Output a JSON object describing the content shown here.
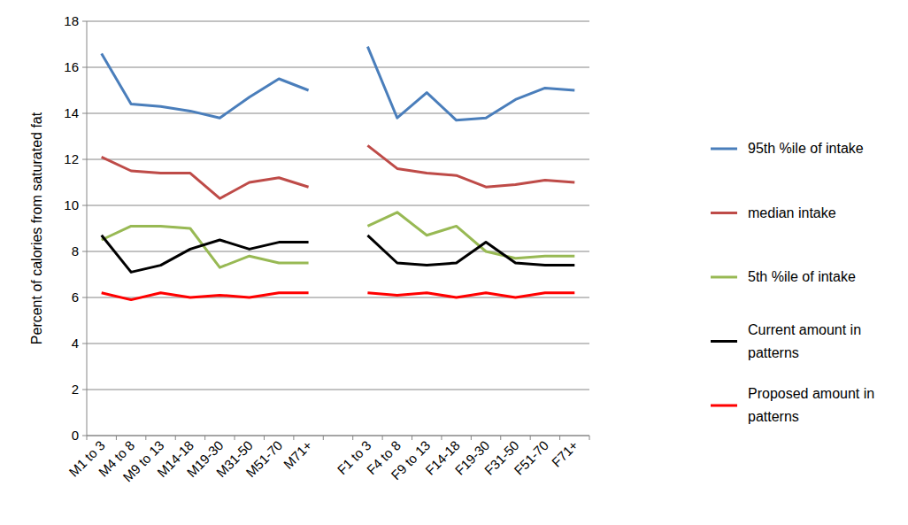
{
  "chart_data": {
    "type": "line",
    "y_label": "Percent of calories from saturated fat",
    "categories": [
      "M1 to 3",
      "M4 to 8",
      "M9 to 13",
      "M14-18",
      "M19-30",
      "M31-50",
      "M51-70",
      "M71+",
      null,
      "F1 to 3",
      "F4 to 8",
      "F9 to 13",
      "F14-18",
      "F19-30",
      "F31-50",
      "F51-70",
      "F71+"
    ],
    "series": [
      {
        "name": "95th %ile of intake",
        "color": "#4a7ebb",
        "values": [
          16.6,
          14.4,
          14.3,
          14.1,
          13.8,
          14.7,
          15.5,
          15.0,
          null,
          16.9,
          13.8,
          14.9,
          13.7,
          13.8,
          14.6,
          15.1,
          15.0
        ]
      },
      {
        "name": "median intake",
        "color": "#be4b48",
        "values": [
          12.1,
          11.5,
          11.4,
          11.4,
          10.3,
          11.0,
          11.2,
          10.8,
          null,
          12.6,
          11.6,
          11.4,
          11.3,
          10.8,
          10.9,
          11.1,
          11.0
        ]
      },
      {
        "name": "5th %ile of intake",
        "color": "#98b954",
        "values": [
          8.5,
          9.1,
          9.1,
          9.0,
          7.3,
          7.8,
          7.5,
          7.5,
          null,
          9.1,
          9.7,
          8.7,
          9.1,
          8.0,
          7.7,
          7.8,
          7.8
        ]
      },
      {
        "name": "Current amount in patterns",
        "color": "#000000",
        "values": [
          8.7,
          7.1,
          7.4,
          8.1,
          8.5,
          8.1,
          8.4,
          8.4,
          null,
          8.7,
          7.5,
          7.4,
          7.5,
          8.4,
          7.5,
          7.4,
          7.4
        ]
      },
      {
        "name": "Proposed amount in patterns",
        "color": "#ff0000",
        "values": [
          6.2,
          5.9,
          6.2,
          6.0,
          6.1,
          6.0,
          6.2,
          6.2,
          null,
          6.2,
          6.1,
          6.2,
          6.0,
          6.2,
          6.0,
          6.2,
          6.2
        ]
      }
    ],
    "ylim": [
      0,
      18
    ],
    "yticks": [
      0,
      2,
      4,
      6,
      8,
      10,
      12,
      14,
      16,
      18
    ],
    "grid": true,
    "legend": "right"
  }
}
